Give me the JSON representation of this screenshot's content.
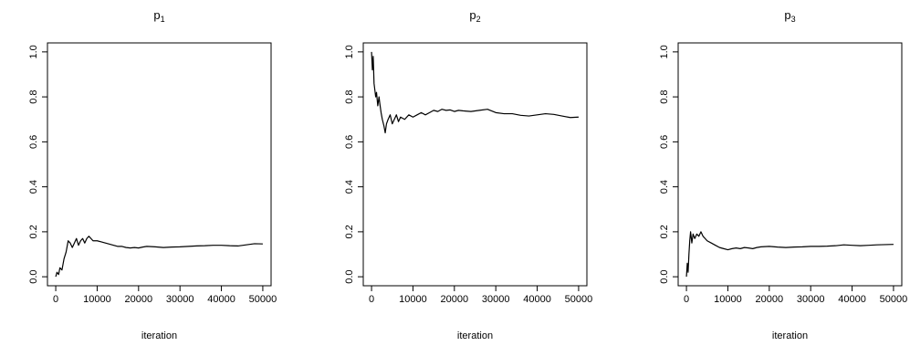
{
  "chart_data": [
    {
      "type": "line",
      "title_base": "p",
      "title_sub": "1",
      "xlabel": "iteration",
      "ylabel": "",
      "xlim": [
        0,
        50000
      ],
      "ylim": [
        0,
        1
      ],
      "x_ticks": [
        "0",
        "10000",
        "20000",
        "30000",
        "40000",
        "50000"
      ],
      "y_ticks": [
        "0.0",
        "0.2",
        "0.4",
        "0.6",
        "0.8",
        "1.0"
      ],
      "grid": false,
      "series": [
        {
          "x": [
            0,
            300,
            700,
            1000,
            1500,
            2000,
            2500,
            3000,
            3500,
            4000,
            4500,
            5000,
            5500,
            6000,
            6500,
            7000,
            7500,
            8000,
            8500,
            9000,
            10000,
            11000,
            12000,
            13000,
            14000,
            15000,
            16000,
            17000,
            18000,
            19000,
            20000,
            21000,
            22000,
            24000,
            26000,
            28000,
            30000,
            32000,
            34000,
            36000,
            38000,
            40000,
            42000,
            44000,
            46000,
            48000,
            50000
          ],
          "y": [
            0.0,
            0.02,
            0.01,
            0.04,
            0.03,
            0.08,
            0.11,
            0.16,
            0.15,
            0.13,
            0.15,
            0.17,
            0.14,
            0.16,
            0.17,
            0.15,
            0.17,
            0.18,
            0.17,
            0.16,
            0.16,
            0.155,
            0.15,
            0.145,
            0.14,
            0.135,
            0.135,
            0.13,
            0.128,
            0.13,
            0.128,
            0.132,
            0.135,
            0.133,
            0.13,
            0.132,
            0.133,
            0.135,
            0.137,
            0.138,
            0.14,
            0.14,
            0.138,
            0.137,
            0.142,
            0.147,
            0.146
          ]
        }
      ]
    },
    {
      "type": "line",
      "title_base": "p",
      "title_sub": "2",
      "xlabel": "iteration",
      "ylabel": "",
      "xlim": [
        0,
        50000
      ],
      "ylim": [
        0,
        1
      ],
      "x_ticks": [
        "0",
        "10000",
        "20000",
        "30000",
        "40000",
        "50000"
      ],
      "y_ticks": [
        "0.0",
        "0.2",
        "0.4",
        "0.6",
        "0.8",
        "1.0"
      ],
      "grid": false,
      "series": [
        {
          "x": [
            0,
            200,
            400,
            600,
            800,
            1000,
            1200,
            1500,
            1800,
            2000,
            2300,
            2600,
            3000,
            3300,
            3600,
            4000,
            4500,
            5000,
            5500,
            6000,
            6500,
            7000,
            8000,
            9000,
            10000,
            11000,
            12000,
            13000,
            14000,
            15000,
            16000,
            17000,
            18000,
            19000,
            20000,
            21000,
            22000,
            24000,
            26000,
            28000,
            30000,
            32000,
            34000,
            36000,
            38000,
            40000,
            42000,
            44000,
            46000,
            48000,
            50000
          ],
          "y": [
            1.0,
            0.92,
            0.98,
            0.86,
            0.83,
            0.8,
            0.82,
            0.76,
            0.8,
            0.77,
            0.73,
            0.7,
            0.67,
            0.64,
            0.68,
            0.7,
            0.72,
            0.68,
            0.7,
            0.72,
            0.69,
            0.71,
            0.7,
            0.72,
            0.71,
            0.72,
            0.73,
            0.72,
            0.73,
            0.74,
            0.735,
            0.745,
            0.74,
            0.742,
            0.735,
            0.74,
            0.738,
            0.735,
            0.74,
            0.745,
            0.73,
            0.725,
            0.725,
            0.718,
            0.715,
            0.72,
            0.725,
            0.722,
            0.715,
            0.708,
            0.71
          ]
        }
      ]
    },
    {
      "type": "line",
      "title_base": "p",
      "title_sub": "3",
      "xlabel": "iteration",
      "ylabel": "",
      "xlim": [
        0,
        50000
      ],
      "ylim": [
        0,
        1
      ],
      "x_ticks": [
        "0",
        "10000",
        "20000",
        "30000",
        "40000",
        "50000"
      ],
      "y_ticks": [
        "0.0",
        "0.2",
        "0.4",
        "0.6",
        "0.8",
        "1.0"
      ],
      "grid": false,
      "series": [
        {
          "x": [
            0,
            200,
            400,
            600,
            800,
            1000,
            1300,
            1600,
            2000,
            2500,
            3000,
            3500,
            4000,
            4500,
            5000,
            6000,
            7000,
            8000,
            9000,
            10000,
            11000,
            12000,
            13000,
            14000,
            15000,
            16000,
            17000,
            18000,
            20000,
            22000,
            24000,
            26000,
            28000,
            30000,
            32000,
            34000,
            36000,
            38000,
            40000,
            42000,
            44000,
            46000,
            48000,
            50000
          ],
          "y": [
            0.0,
            0.06,
            0.02,
            0.1,
            0.16,
            0.2,
            0.15,
            0.19,
            0.17,
            0.19,
            0.18,
            0.2,
            0.18,
            0.17,
            0.16,
            0.15,
            0.14,
            0.13,
            0.125,
            0.12,
            0.125,
            0.128,
            0.125,
            0.13,
            0.128,
            0.125,
            0.13,
            0.133,
            0.135,
            0.132,
            0.13,
            0.132,
            0.133,
            0.135,
            0.135,
            0.136,
            0.138,
            0.142,
            0.14,
            0.138,
            0.14,
            0.142,
            0.143,
            0.144
          ]
        }
      ]
    }
  ]
}
